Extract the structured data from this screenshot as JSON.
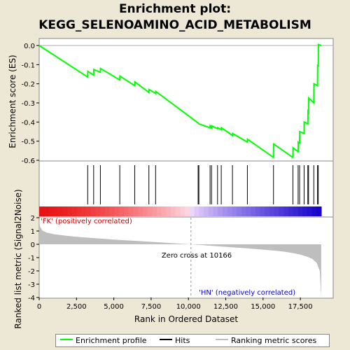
{
  "title_line1": "Enrichment plot:",
  "title_line2": "KEGG_SELENOAMINO_ACID_METABOLISM",
  "colors": {
    "enrichment": "#00ff00",
    "hits": "#000000",
    "ranking": "#bebebe",
    "background": "#ede8d5"
  },
  "chart_data": [
    {
      "type": "line",
      "name": "enrichment",
      "ylabel": "Enrichment score (ES)",
      "ylim": [
        -0.6,
        0.0
      ],
      "yticks": [
        "0.0",
        "-0.1",
        "-0.2",
        "-0.3",
        "-0.4",
        "-0.5",
        "-0.6"
      ],
      "series": [
        {
          "name": "Enrichment profile",
          "x": [
            0,
            3250,
            3260,
            3650,
            3660,
            4100,
            4110,
            5400,
            5410,
            6400,
            6410,
            7350,
            7360,
            7800,
            7810,
            10650,
            10660,
            10700,
            10710,
            11450,
            11460,
            11550,
            11560,
            11950,
            11960,
            12200,
            12210,
            12950,
            12960,
            13950,
            13960,
            15700,
            15710,
            17000,
            17010,
            17350,
            17360,
            17450,
            17460,
            17750,
            17760,
            18000,
            18010,
            18050,
            18060,
            18400,
            18410,
            18650,
            18660,
            18700,
            18710,
            18900
          ],
          "y": [
            0.0,
            -0.165,
            -0.135,
            -0.155,
            -0.125,
            -0.14,
            -0.12,
            -0.18,
            -0.16,
            -0.21,
            -0.19,
            -0.245,
            -0.23,
            -0.25,
            -0.24,
            -0.405,
            -0.405,
            -0.41,
            -0.41,
            -0.43,
            -0.42,
            -0.43,
            -0.42,
            -0.435,
            -0.43,
            -0.44,
            -0.43,
            -0.47,
            -0.46,
            -0.505,
            -0.49,
            -0.585,
            -0.515,
            -0.585,
            -0.535,
            -0.555,
            -0.505,
            -0.51,
            -0.45,
            -0.46,
            -0.4,
            -0.41,
            -0.345,
            -0.35,
            -0.275,
            -0.3,
            -0.2,
            -0.21,
            -0.1,
            -0.11,
            0.005,
            0.0
          ]
        }
      ]
    },
    {
      "type": "scatter",
      "name": "hits",
      "series": [
        {
          "name": "Hits",
          "x": [
            3250,
            3650,
            4100,
            5400,
            6400,
            7350,
            7800,
            10650,
            10700,
            11450,
            11550,
            11950,
            12200,
            12950,
            13950,
            15700,
            17000,
            17350,
            17450,
            17750,
            18000,
            18050,
            18400,
            18650,
            18700
          ]
        }
      ]
    },
    {
      "type": "area",
      "name": "ranking",
      "xlabel": "Rank in Ordered Dataset",
      "ylabel": "Ranked list metric (Signal2Noise)",
      "xlim": [
        0,
        19700
      ],
      "ylim": [
        -4,
        2
      ],
      "xticks": [
        "0",
        "2,500",
        "5,000",
        "7,500",
        "10,000",
        "12,500",
        "15,000",
        "17,500"
      ],
      "yticks": [
        "2",
        "1",
        "0",
        "-1",
        "-2",
        "-3",
        "-4"
      ],
      "zero_cross_label": "Zero cross at 10166",
      "zero_cross": 10166,
      "pos_label": "'FK' (positively correlated)",
      "neg_label": "'HN' (negatively correlated)",
      "series": [
        {
          "name": "Ranking metric scores",
          "x": [
            0,
            50,
            200,
            500,
            1000,
            2000,
            3000,
            4000,
            5000,
            6000,
            7000,
            8000,
            9000,
            10166,
            11000,
            12000,
            13000,
            14000,
            15000,
            16000,
            16500,
            17000,
            17500,
            18000,
            18300,
            18600,
            18800,
            18900
          ],
          "y": [
            1.9,
            1.35,
            1.05,
            0.88,
            0.76,
            0.62,
            0.52,
            0.44,
            0.36,
            0.29,
            0.22,
            0.15,
            0.08,
            0.0,
            -0.07,
            -0.15,
            -0.23,
            -0.31,
            -0.4,
            -0.5,
            -0.57,
            -0.66,
            -0.78,
            -0.95,
            -1.1,
            -1.4,
            -2.0,
            -3.9
          ]
        }
      ]
    }
  ],
  "legend": {
    "enrichment": "Enrichment profile",
    "hits": "Hits",
    "ranking": "Ranking metric scores"
  }
}
